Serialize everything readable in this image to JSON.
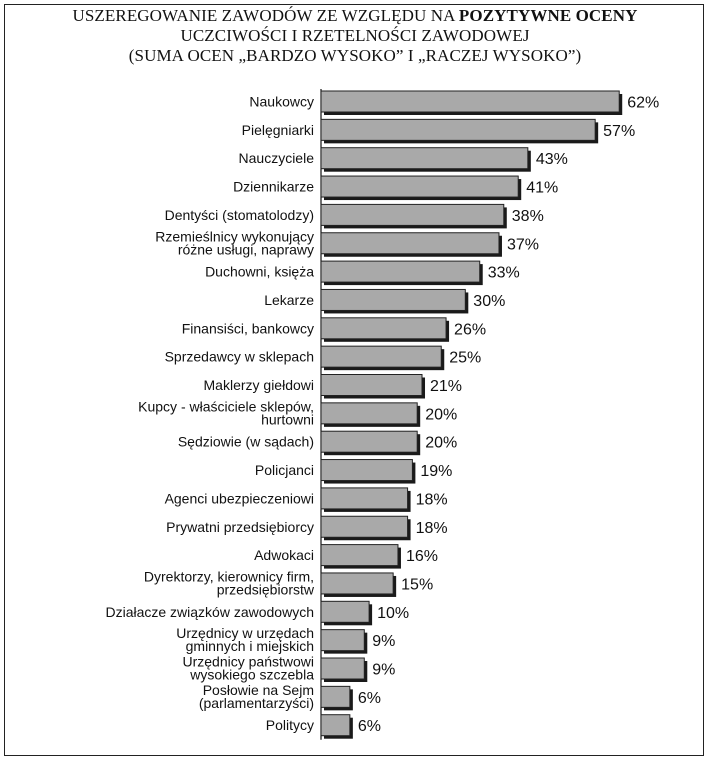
{
  "chart_data": {
    "type": "bar",
    "orientation": "horizontal",
    "title_line1_prefix": "USZEREGOWANIE ZAWODÓW ZE WZGLĘDU NA ",
    "title_line1_bold": "POZYTYWNE OCENY",
    "title_line2": "UCZCIWOŚCI I RZETELNOŚCI ZAWODOWEJ",
    "title_line3": "(SUMA OCEN „BARDZO WYSOKO” I „RACZEJ WYSOKO”)",
    "value_suffix": "%",
    "bar_color": "#a9a9a9",
    "categories": [
      [
        "Naukowcy"
      ],
      [
        "Pielęgniarki"
      ],
      [
        "Nauczyciele"
      ],
      [
        "Dziennikarze"
      ],
      [
        "Dentyści (stomatolodzy)"
      ],
      [
        "Rzemieślnicy wykonujący",
        "różne usługi, naprawy"
      ],
      [
        "Duchowni, księża"
      ],
      [
        "Lekarze"
      ],
      [
        "Finansiści, bankowcy"
      ],
      [
        "Sprzedawcy w sklepach"
      ],
      [
        "Maklerzy giełdowi"
      ],
      [
        "Kupcy - właściciele sklepów,",
        "hurtowni"
      ],
      [
        "Sędziowie (w sądach)"
      ],
      [
        "Policjanci"
      ],
      [
        "Agenci ubezpieczeniowi"
      ],
      [
        "Prywatni przedsiębiorcy"
      ],
      [
        "Adwokaci"
      ],
      [
        "Dyrektorzy, kierownicy firm,",
        "przedsiębiorstw"
      ],
      [
        "Działacze związków zawodowych"
      ],
      [
        "Urzędnicy w urzędach",
        "gminnych i miejskich"
      ],
      [
        "Urzędnicy państwowi",
        "wysokiego szczebla"
      ],
      [
        "Posłowie na Sejm",
        "(parlamentarzyści)"
      ],
      [
        "Politycy"
      ]
    ],
    "values": [
      62,
      57,
      43,
      41,
      38,
      37,
      33,
      30,
      26,
      25,
      21,
      20,
      20,
      19,
      18,
      18,
      16,
      15,
      10,
      9,
      9,
      6,
      6
    ]
  }
}
